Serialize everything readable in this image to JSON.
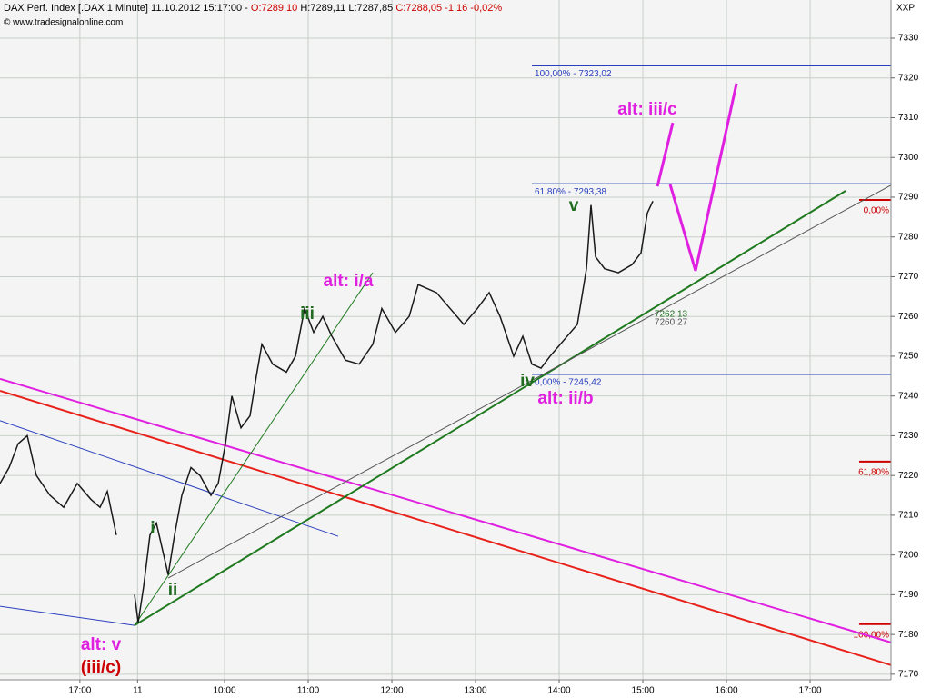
{
  "chart_data": {
    "type": "line",
    "header": {
      "parts": [
        {
          "text": "DAX Perf. Index [.DAX  1 Minute] 11.10.2012 15:17:00 - ",
          "color": "#000000"
        },
        {
          "text": "O:7289,10",
          "color": "#cc0000"
        },
        {
          "text": " H:7289,11 L:7287,85 ",
          "color": "#000000"
        },
        {
          "text": "C:7288,05 -1,16 -0,02%",
          "color": "#cc0000"
        }
      ]
    },
    "copyright": "© www.tradesignalonline.com",
    "axis_name": "XXP",
    "x": [
      7.315,
      7.424,
      7.532,
      7.641,
      7.75,
      7.913,
      8.076,
      8.239,
      8.402,
      8.511,
      8.598,
      8.706,
      8.815,
      8.924,
      8.967,
      9.032,
      9.108,
      9.185,
      9.272,
      9.326,
      9.402,
      9.489,
      9.598,
      9.706,
      9.837,
      9.924,
      10.011,
      10.087,
      10.196,
      10.304,
      10.38,
      10.446,
      10.576,
      10.739,
      10.848,
      10.956,
      11.065,
      11.174,
      11.283,
      11.446,
      11.609,
      11.772,
      11.88,
      12.043,
      12.207,
      12.315,
      12.533,
      12.696,
      12.859,
      13.022,
      13.163,
      13.293,
      13.456,
      13.565,
      13.674,
      13.783,
      13.891,
      14.054,
      14.217,
      14.326,
      14.38,
      14.435,
      14.543,
      14.707,
      14.87,
      14.978,
      15.054,
      15.12
    ],
    "series": [
      {
        "name": "DAX",
        "color": "#1a1a1a",
        "values": [
          7218,
          7222,
          7228,
          7230,
          7220,
          7215,
          7212,
          7218,
          7214,
          7212,
          7216,
          7205,
          null,
          7190,
          7183,
          7192,
          7205,
          7208,
          7200,
          7195,
          7205,
          7215,
          7222,
          7220,
          7215,
          7218,
          7228,
          7240,
          7232,
          7235,
          7245,
          7253,
          7248,
          7246,
          7250,
          7262,
          7256,
          7260,
          7255,
          7249,
          7248,
          7253,
          7262,
          7256,
          7260,
          7268,
          7266,
          7262,
          7258,
          7262,
          7266,
          7260,
          7250,
          7255,
          7248,
          7247,
          7250,
          7254,
          7258,
          7272,
          7288,
          7275,
          7272,
          7271,
          7273,
          7276,
          7286,
          7289
        ]
      }
    ],
    "trendlines": [
      {
        "color": "#e8221b",
        "width": 2,
        "x": [
          7.315,
          17.967
        ],
        "values": [
          7241.3,
          7172.3
        ]
      },
      {
        "color": "#e020e0",
        "width": 2,
        "x": [
          7.315,
          17.967
        ],
        "values": [
          7244.3,
          7178.0
        ]
      },
      {
        "color": "#2a3fbf",
        "width": 1,
        "x": [
          7.315,
          11.358
        ],
        "values": [
          7233.8,
          7204.7
        ]
      },
      {
        "color": "#2a3fbf",
        "width": 1,
        "x": [
          7.315,
          8.924
        ],
        "values": [
          7187.1,
          7182.3
        ]
      },
      {
        "color": "#1f7a1f",
        "width": 2,
        "x": [
          8.924,
          17.424
        ],
        "values": [
          7182.3,
          7291.6
        ]
      },
      {
        "color": "#555555",
        "width": 1,
        "x": [
          9.326,
          17.967
        ],
        "values": [
          7194.2,
          7293.0
        ]
      },
      {
        "color": "#1f7a1f",
        "width": 1,
        "x": [
          8.924,
          11.772
        ],
        "values": [
          7182.3,
          7271.0
        ]
      },
      {
        "color": "#e020e0",
        "width": 3,
        "x": [
          15.174,
          15.358
        ],
        "values": [
          7292.7,
          7308.7
        ]
      },
      {
        "color": "#e020e0",
        "width": 3,
        "x": [
          15.326,
          15.63,
          16.12
        ],
        "values": [
          7293.2,
          7271.5,
          7318.6
        ]
      }
    ],
    "fib_levels": [
      {
        "value": 7323.02,
        "label": "100,00% - 7323,02"
      },
      {
        "value": 7293.38,
        "label": "61,80% - 7293,38"
      },
      {
        "value": 7245.42,
        "label": "0,00% - 7245,42"
      }
    ],
    "fib_start": 13.674,
    "fib_color": "#2a3fbf",
    "right_markers": [
      {
        "value": 7289.3,
        "label": "0,00%"
      },
      {
        "value": 7223.5,
        "label": "61,80%"
      },
      {
        "value": 7182.6,
        "label": "100,00%"
      }
    ],
    "marker_color": "#cc0000",
    "annotations": [
      {
        "text": "v",
        "color": "#1f6b1f"
      },
      {
        "text": "iii",
        "color": "#1f6b1f"
      },
      {
        "text": "i",
        "color": "#1f6b1f"
      },
      {
        "text": "ii",
        "color": "#1f6b1f"
      },
      {
        "text": "iv",
        "color": "#1f6b1f"
      },
      {
        "text": "alt: i/a",
        "color": "#e020e0"
      },
      {
        "text": "alt: iii/c",
        "color": "#e020e0"
      },
      {
        "text": "alt: ii/b",
        "color": "#e020e0"
      },
      {
        "text": "alt: v",
        "color": "#e020e0"
      },
      {
        "text": "(iii/c)",
        "color": "#cc0000"
      }
    ],
    "line_labels": [
      {
        "text": "7262,13",
        "color": "#1f6b1f"
      },
      {
        "text": "7260,27",
        "color": "#555555"
      }
    ],
    "xlim": [
      7.315,
      17.967
    ],
    "xticks": [
      {
        "value": 8.27,
        "label": "17:00"
      },
      {
        "value": 8.96,
        "label": "11"
      },
      {
        "value": 10,
        "label": "10:00"
      },
      {
        "value": 11,
        "label": "11:00"
      },
      {
        "value": 12,
        "label": "12:00"
      },
      {
        "value": 13,
        "label": "13:00"
      },
      {
        "value": 14,
        "label": "14:00"
      },
      {
        "value": 15,
        "label": "15:00"
      },
      {
        "value": 16,
        "label": "16:00"
      },
      {
        "value": 17,
        "label": "17:00"
      }
    ],
    "ylim": [
      7168.6,
      7339.6
    ],
    "yticks": [
      7170,
      7180,
      7190,
      7200,
      7210,
      7220,
      7230,
      7240,
      7250,
      7260,
      7270,
      7280,
      7290,
      7300,
      7310,
      7320,
      7330
    ],
    "grid": true
  }
}
